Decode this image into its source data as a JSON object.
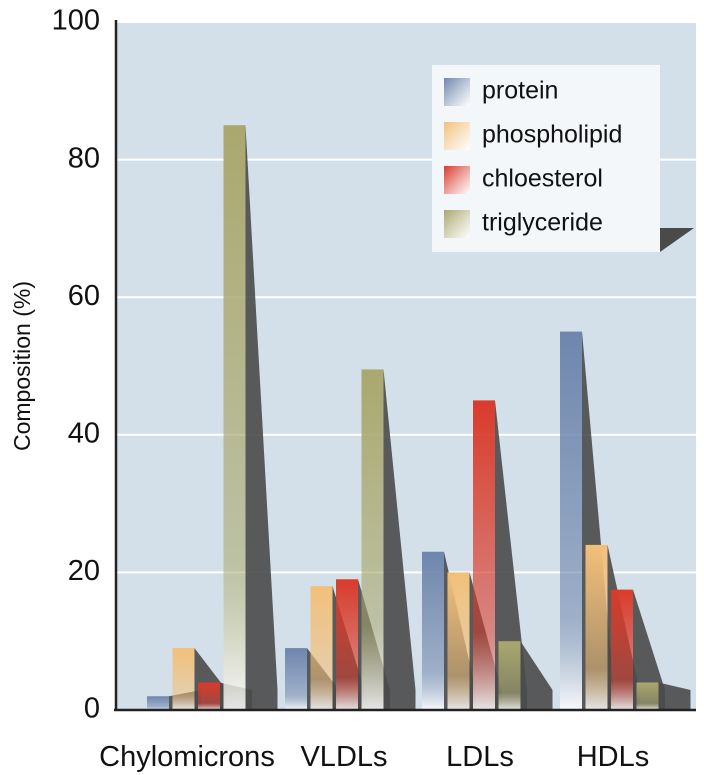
{
  "chart_data": {
    "type": "bar",
    "title": "",
    "xlabel": "",
    "ylabel": "Composition (%)",
    "ylim": [
      0,
      100
    ],
    "yticks": [
      "0",
      "20",
      "40",
      "60",
      "80",
      "100"
    ],
    "categories": [
      "Chylomicrons",
      "VLDLs",
      "LDLs",
      "HDLs"
    ],
    "series": [
      {
        "name": "protein",
        "values": [
          2,
          9,
          23,
          55
        ]
      },
      {
        "name": "phospholipid",
        "values": [
          9,
          18,
          20,
          24
        ]
      },
      {
        "name": "chloesterol",
        "values": [
          4,
          19,
          45,
          17.5
        ]
      },
      {
        "name": "triglyceride",
        "values": [
          85,
          49.5,
          10,
          4
        ]
      }
    ],
    "grid": true,
    "legend_position": "top-right",
    "colors": {
      "protein": "#6f86ad",
      "phospholipid": "#f2c07a",
      "chloesterol": "#d93b2b",
      "triglyceride": "#aaa86e",
      "plot_background": "#d4e0e9",
      "shadow": "#4a4a4a"
    }
  }
}
